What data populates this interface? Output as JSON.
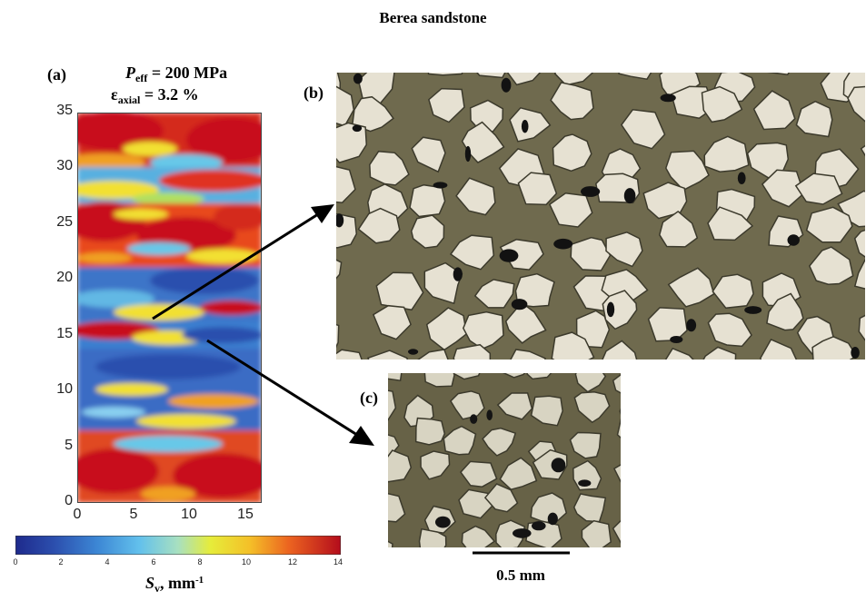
{
  "title": "Berea sandstone",
  "panel_a": {
    "label": "(a)",
    "p_symbol": "P",
    "p_sub": "eff",
    "p_value": " = 200 MPa",
    "eps_symbol": "ε",
    "eps_sub": "axial",
    "eps_value": " = 3.2 %",
    "y_ticks": [
      "0",
      "5",
      "10",
      "15",
      "20",
      "25",
      "30",
      "35"
    ],
    "x_ticks": [
      "0",
      "5",
      "10",
      "15"
    ],
    "ylim": [
      0,
      35
    ],
    "xlim": [
      0,
      16.5
    ]
  },
  "colorbar": {
    "ticks": [
      "0",
      "2",
      "4",
      "6",
      "8",
      "10",
      "12",
      "14"
    ],
    "symbol": "S",
    "sub": "v",
    "unit": ", mm",
    "sup": "-1",
    "range": [
      0,
      14
    ]
  },
  "panel_b": {
    "label": "(b)"
  },
  "panel_c": {
    "label": "(c)"
  },
  "scale_bar": {
    "label": "0.5 mm"
  },
  "colors": {
    "map_high": "#c8101c",
    "map_low": "#2c4fae",
    "photo_grain": "#e6e1d2",
    "photo_cement": "#6f6a4e"
  }
}
